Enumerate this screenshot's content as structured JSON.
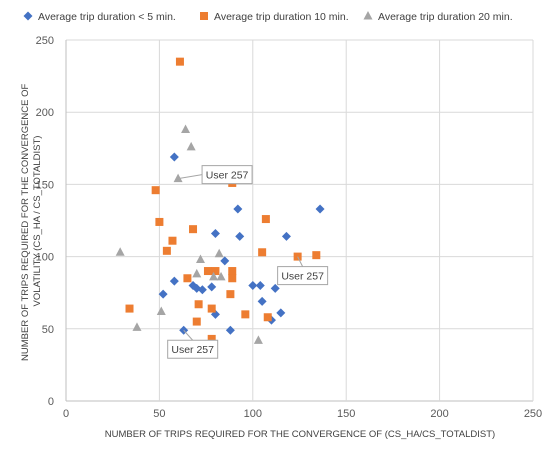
{
  "chart_data": {
    "type": "scatter",
    "title": "",
    "xlabel": "NUMBER OF TRIPS REQUIRED FOR THE CONVERGENCE OF (CS_HA/CS_TOTALDIST)",
    "ylabel": "NUMBER OF TRIPS REQUIRED FOR THE CONVERGENCE OF VOLATILITY (CS_HA / CS_TOTALDIST)",
    "xlim": [
      0,
      250
    ],
    "ylim": [
      0,
      250
    ],
    "xticks": [
      "0",
      "50",
      "100",
      "150",
      "200",
      "250"
    ],
    "yticks": [
      "0",
      "50",
      "100",
      "150",
      "200",
      "250"
    ],
    "grid": true,
    "legend_position": "top",
    "series": [
      {
        "name": "Average trip duration < 5 min.",
        "color": "#4472C4",
        "marker": "diamond",
        "points": [
          [
            58,
            169
          ],
          [
            92,
            133
          ],
          [
            136,
            133
          ],
          [
            93,
            114
          ],
          [
            80,
            116
          ],
          [
            118,
            114
          ],
          [
            58,
            83
          ],
          [
            52,
            74
          ],
          [
            68,
            80
          ],
          [
            78,
            79
          ],
          [
            70,
            78
          ],
          [
            73,
            77
          ],
          [
            85,
            97
          ],
          [
            100,
            80
          ],
          [
            104,
            80
          ],
          [
            105,
            69
          ],
          [
            112,
            78
          ],
          [
            80,
            60
          ],
          [
            88,
            49
          ],
          [
            63,
            49
          ],
          [
            110,
            56
          ],
          [
            115,
            61
          ]
        ]
      },
      {
        "name": "Average trip duration 10 min.",
        "color": "#ED7D31",
        "marker": "square",
        "points": [
          [
            61,
            235
          ],
          [
            48,
            146
          ],
          [
            50,
            124
          ],
          [
            89,
            151
          ],
          [
            68,
            119
          ],
          [
            57,
            111
          ],
          [
            107,
            126
          ],
          [
            54,
            104
          ],
          [
            105,
            103
          ],
          [
            124,
            100
          ],
          [
            134,
            101
          ],
          [
            65,
            85
          ],
          [
            76,
            90
          ],
          [
            80,
            90
          ],
          [
            89,
            90
          ],
          [
            89,
            85
          ],
          [
            71,
            67
          ],
          [
            88,
            74
          ],
          [
            78,
            64
          ],
          [
            96,
            60
          ],
          [
            108,
            58
          ],
          [
            70,
            55
          ],
          [
            78,
            43
          ],
          [
            34,
            64
          ]
        ]
      },
      {
        "name": "Average trip duration 20 min.",
        "color": "#A5A5A5",
        "marker": "triangle",
        "points": [
          [
            64,
            188
          ],
          [
            67,
            176
          ],
          [
            60,
            154
          ],
          [
            72,
            98
          ],
          [
            82,
            102
          ],
          [
            29,
            103
          ],
          [
            70,
            88
          ],
          [
            79,
            86
          ],
          [
            83,
            86
          ],
          [
            51,
            62
          ],
          [
            38,
            51
          ],
          [
            103,
            42
          ]
        ]
      }
    ],
    "annotations": [
      {
        "text": "User 257",
        "x": 60,
        "y": 154
      },
      {
        "text": "User 257",
        "x": 124,
        "y": 100
      },
      {
        "text": "User 257",
        "x": 63,
        "y": 49
      }
    ]
  }
}
